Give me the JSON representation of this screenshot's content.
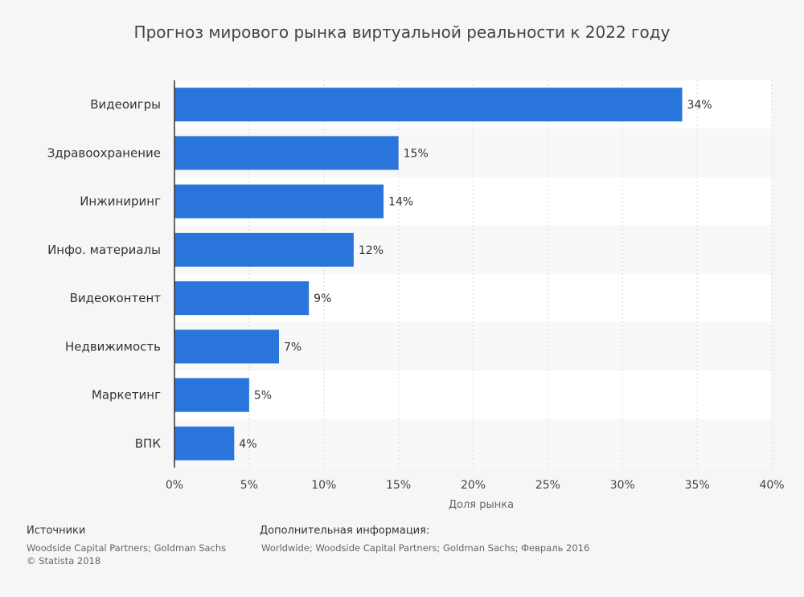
{
  "chart_data": {
    "type": "bar",
    "orientation": "horizontal",
    "title": "Прогноз мирового рынка виртуальной реальности к 2022 году",
    "categories": [
      "Видеоигры",
      "Здравоохранение",
      "Инжиниринг",
      "Инфо. материалы",
      "Видеоконтент",
      "Недвижимость",
      "Маркетинг",
      "ВПК"
    ],
    "values": [
      34,
      15,
      14,
      12,
      9,
      7,
      5,
      4
    ],
    "value_labels": [
      "34%",
      "15%",
      "14%",
      "12%",
      "9%",
      "7%",
      "5%",
      "4%"
    ],
    "xlabel": "Доля рынка",
    "ylabel": "",
    "xlim": [
      0,
      40
    ],
    "ticks": [
      0,
      5,
      10,
      15,
      20,
      25,
      30,
      35,
      40
    ],
    "tick_labels": [
      "0%",
      "5%",
      "10%",
      "15%",
      "20%",
      "25%",
      "30%",
      "35%",
      "40%"
    ],
    "grid": true,
    "bar_color": "#2a75db"
  },
  "footer": {
    "sources_heading": "Источники",
    "sources_line1": "Woodside Capital Partners; Goldman Sachs",
    "sources_line2": "© Statista 2018",
    "info_heading": "Дополнительная информация:",
    "info_text": "Worldwide; Woodside Capital Partners; Goldman Sachs; Февраль 2016"
  }
}
